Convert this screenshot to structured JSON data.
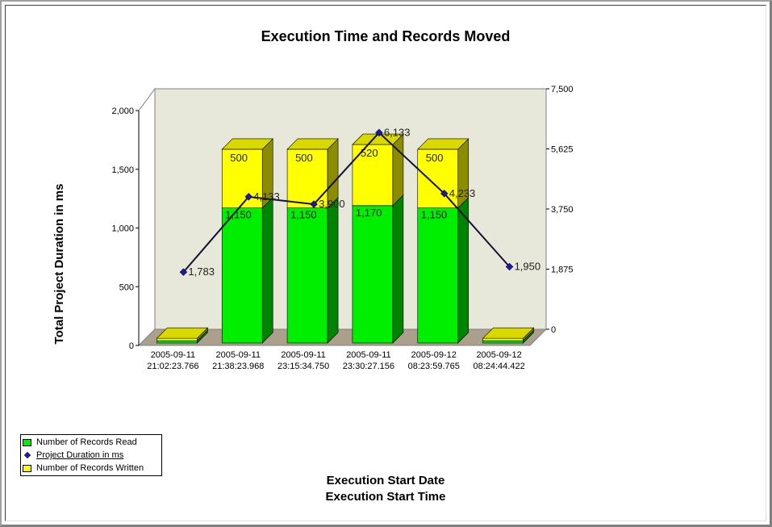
{
  "chart_data": {
    "type": "bar",
    "title": "Execution Time and Records Moved",
    "xlabel_lines": [
      "Execution Start Date",
      "Execution Start Time"
    ],
    "ylabel": "Total Project Duration in ms",
    "categories": [
      [
        "2005-09-11",
        "21:02:23.766"
      ],
      [
        "2005-09-11",
        "21:38:23.968"
      ],
      [
        "2005-09-11",
        "23:15:34.750"
      ],
      [
        "2005-09-11",
        "23:30:27.156"
      ],
      [
        "2005-09-12",
        "08:23:59.765"
      ],
      [
        "2005-09-12",
        "08:24:44.422"
      ]
    ],
    "ylim_left": [
      0,
      2000
    ],
    "yticks_left": [
      "0",
      "500",
      "1,000",
      "1,500",
      "2,000"
    ],
    "ylim_right": [
      0,
      7500
    ],
    "yticks_right": [
      "0",
      "1,875",
      "3,750",
      "5,625",
      "7,500"
    ],
    "series": [
      {
        "name": "Number of Records Read",
        "kind": "bar",
        "color": "#00ee00",
        "axis": "left",
        "values": [
          20,
          1150,
          1150,
          1170,
          1150,
          20
        ],
        "labels": [
          "",
          "1,150",
          "1,150",
          "1,170",
          "1,150",
          ""
        ]
      },
      {
        "name": "Number of Records Written",
        "kind": "bar",
        "color": "#ffff00",
        "axis": "left",
        "values": [
          20,
          500,
          500,
          520,
          500,
          20
        ],
        "labels": [
          "",
          "500",
          "500",
          "520",
          "500",
          ""
        ]
      },
      {
        "name": "Project Duration in ms",
        "kind": "line",
        "color": "#1b1b9a",
        "axis": "right",
        "values": [
          1783,
          4133,
          3900,
          6133,
          4233,
          1950
        ],
        "labels": [
          "1,783",
          "4,133",
          "3,900",
          "6,133",
          "4,233",
          "1,950"
        ]
      }
    ],
    "legend": [
      {
        "label": "Number of Records Read",
        "symbol": "box",
        "color": "#00ee00"
      },
      {
        "label": "Project Duration in ms",
        "symbol": "diamond",
        "color": "#1b1b9a"
      },
      {
        "label": "Number of Records Written",
        "symbol": "box",
        "color": "#ffff00"
      }
    ],
    "legend_position": "bottom-left",
    "grid": false,
    "colors": {
      "wall": "#e8e8da",
      "floor": "#aaa08c"
    }
  }
}
